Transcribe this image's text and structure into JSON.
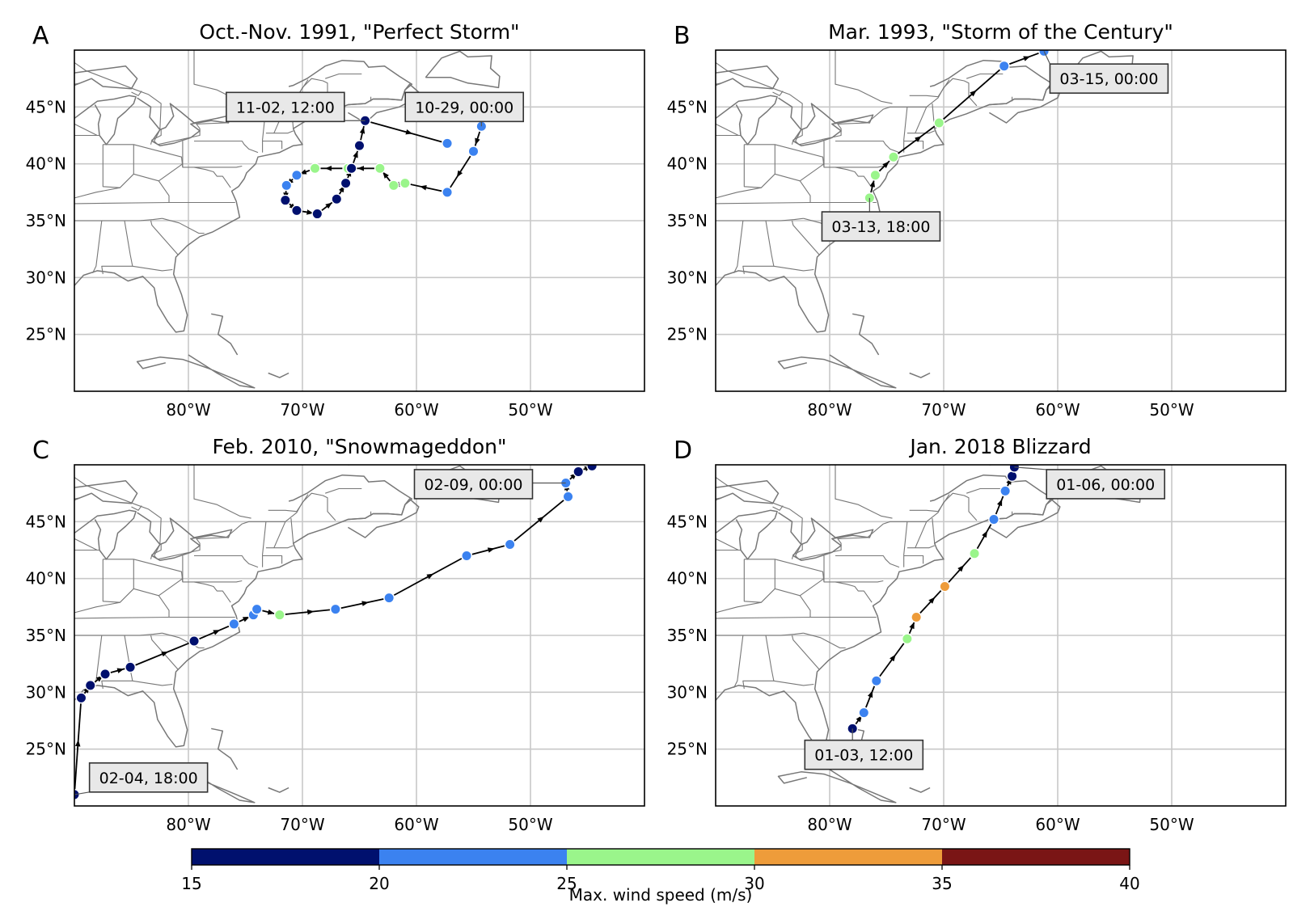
{
  "figure": {
    "colorbar": {
      "label": "Max. wind speed (m/s)",
      "bounds": [
        15,
        20,
        25,
        30,
        35,
        40
      ],
      "tick_labels": [
        "15",
        "20",
        "25",
        "30",
        "35",
        "40"
      ],
      "colors": [
        "#00106e",
        "#3b82f0",
        "#9af58b",
        "#ee9c3a",
        "#7a1515"
      ]
    },
    "map": {
      "extent_lon": [
        -90,
        -40
      ],
      "extent_lat": [
        20,
        50
      ],
      "x_ticks": [
        -80,
        -70,
        -60,
        -50
      ],
      "x_tick_labels": [
        "80°W",
        "70°W",
        "60°W",
        "50°W"
      ],
      "y_ticks": [
        25,
        30,
        35,
        40,
        45
      ],
      "y_tick_labels": [
        "25°N",
        "30°N",
        "35°N",
        "40°N",
        "45°N"
      ],
      "coastline_color": "#777777",
      "grid_color": "#c8c8c8"
    }
  },
  "panels": [
    {
      "letter": "A",
      "title": "Oct.-Nov. 1991, \"Perfect Storm\"",
      "labels": [
        {
          "text": "11-02, 12:00",
          "lon": -71.5,
          "lat": 45.0,
          "anchor_lon": -64.5,
          "anchor_lat": 43.8
        },
        {
          "text": "10-29, 00:00",
          "lon": -55.8,
          "lat": 45.0,
          "anchor_lon": -54.3,
          "anchor_lat": 43.3
        }
      ],
      "track": [
        {
          "lon": -54.3,
          "lat": 43.3,
          "wind": 22
        },
        {
          "lon": -55.0,
          "lat": 41.1,
          "wind": 22
        },
        {
          "lon": -57.3,
          "lat": 37.5,
          "wind": 22
        },
        {
          "lon": -61.0,
          "lat": 38.3,
          "wind": 27
        },
        {
          "lon": -62.0,
          "lat": 38.1,
          "wind": 27
        },
        {
          "lon": -63.2,
          "lat": 39.6,
          "wind": 27
        },
        {
          "lon": -66.0,
          "lat": 39.6,
          "wind": 27
        },
        {
          "lon": -68.9,
          "lat": 39.6,
          "wind": 27
        },
        {
          "lon": -70.5,
          "lat": 39.0,
          "wind": 22
        },
        {
          "lon": -71.4,
          "lat": 38.1,
          "wind": 22
        },
        {
          "lon": -71.5,
          "lat": 36.8,
          "wind": 17
        },
        {
          "lon": -70.5,
          "lat": 35.9,
          "wind": 17
        },
        {
          "lon": -68.7,
          "lat": 35.6,
          "wind": 17
        },
        {
          "lon": -67.0,
          "lat": 36.9,
          "wind": 17
        },
        {
          "lon": -66.2,
          "lat": 38.3,
          "wind": 17
        },
        {
          "lon": -65.7,
          "lat": 39.6,
          "wind": 17
        },
        {
          "lon": -65.0,
          "lat": 41.6,
          "wind": 17
        },
        {
          "lon": -64.5,
          "lat": 43.8,
          "wind": 17
        },
        {
          "lon": -57.3,
          "lat": 41.8,
          "wind": 22
        }
      ]
    },
    {
      "letter": "B",
      "title": "Mar. 1993, \"Storm of the Century\"",
      "labels": [
        {
          "text": "03-13, 18:00",
          "lon": -75.5,
          "lat": 34.5,
          "anchor_lon": -76.5,
          "anchor_lat": 37.0
        },
        {
          "text": "03-15, 00:00",
          "lon": -55.5,
          "lat": 47.5,
          "anchor_lon": -61.2,
          "anchor_lat": 49.9
        }
      ],
      "track": [
        {
          "lon": -76.5,
          "lat": 37.0,
          "wind": 27
        },
        {
          "lon": -76.0,
          "lat": 39.0,
          "wind": 27
        },
        {
          "lon": -74.4,
          "lat": 40.6,
          "wind": 27
        },
        {
          "lon": -70.4,
          "lat": 43.6,
          "wind": 27
        },
        {
          "lon": -64.7,
          "lat": 48.6,
          "wind": 22
        },
        {
          "lon": -61.2,
          "lat": 49.9,
          "wind": 22
        }
      ]
    },
    {
      "letter": "C",
      "title": "Feb. 2010, \"Snowmageddon\"",
      "labels": [
        {
          "text": "02-04, 18:00",
          "lon": -83.5,
          "lat": 22.5,
          "anchor_lon": -90.0,
          "anchor_lat": 21.0
        },
        {
          "text": "02-09, 00:00",
          "lon": -55.0,
          "lat": 48.3,
          "anchor_lon": -46.9,
          "anchor_lat": 48.4
        }
      ],
      "track": [
        {
          "lon": -90.0,
          "lat": 21.0,
          "wind": 17
        },
        {
          "lon": -89.4,
          "lat": 29.5,
          "wind": 17
        },
        {
          "lon": -88.6,
          "lat": 30.6,
          "wind": 17
        },
        {
          "lon": -87.3,
          "lat": 31.6,
          "wind": 17
        },
        {
          "lon": -85.1,
          "lat": 32.2,
          "wind": 17
        },
        {
          "lon": -79.5,
          "lat": 34.5,
          "wind": 17
        },
        {
          "lon": -76.0,
          "lat": 36.0,
          "wind": 22
        },
        {
          "lon": -74.3,
          "lat": 36.8,
          "wind": 22
        },
        {
          "lon": -74.0,
          "lat": 37.3,
          "wind": 22
        },
        {
          "lon": -72.0,
          "lat": 36.8,
          "wind": 27
        },
        {
          "lon": -67.1,
          "lat": 37.3,
          "wind": 22
        },
        {
          "lon": -62.4,
          "lat": 38.3,
          "wind": 22
        },
        {
          "lon": -55.6,
          "lat": 42.0,
          "wind": 22
        },
        {
          "lon": -51.8,
          "lat": 43.0,
          "wind": 22
        },
        {
          "lon": -46.7,
          "lat": 47.2,
          "wind": 22
        },
        {
          "lon": -46.9,
          "lat": 48.4,
          "wind": 22
        },
        {
          "lon": -45.8,
          "lat": 49.4,
          "wind": 17
        },
        {
          "lon": -44.6,
          "lat": 49.9,
          "wind": 17
        }
      ]
    },
    {
      "letter": "D",
      "title": "Jan. 2018 Blizzard",
      "labels": [
        {
          "text": "01-03, 12:00",
          "lon": -77.0,
          "lat": 24.5,
          "anchor_lon": -78.0,
          "anchor_lat": 26.8
        },
        {
          "text": "01-06, 00:00",
          "lon": -55.8,
          "lat": 48.3,
          "anchor_lon": -63.8,
          "anchor_lat": 49.8
        }
      ],
      "track": [
        {
          "lon": -78.0,
          "lat": 26.8,
          "wind": 17
        },
        {
          "lon": -77.0,
          "lat": 28.2,
          "wind": 22
        },
        {
          "lon": -75.9,
          "lat": 31.0,
          "wind": 22
        },
        {
          "lon": -73.2,
          "lat": 34.7,
          "wind": 27
        },
        {
          "lon": -72.4,
          "lat": 36.6,
          "wind": 32
        },
        {
          "lon": -69.9,
          "lat": 39.3,
          "wind": 32
        },
        {
          "lon": -67.3,
          "lat": 42.2,
          "wind": 27
        },
        {
          "lon": -65.6,
          "lat": 45.2,
          "wind": 22
        },
        {
          "lon": -64.6,
          "lat": 47.7,
          "wind": 22
        },
        {
          "lon": -64.0,
          "lat": 49.0,
          "wind": 17
        },
        {
          "lon": -63.8,
          "lat": 49.8,
          "wind": 17
        }
      ]
    }
  ]
}
